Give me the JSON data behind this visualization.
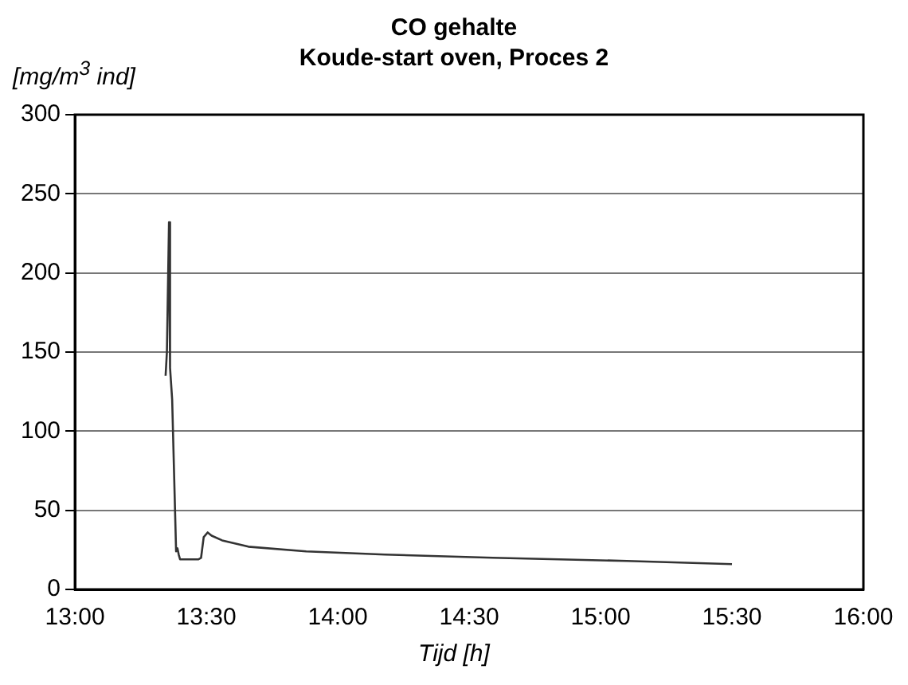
{
  "chart_data": {
    "type": "line",
    "title": "CO gehalte",
    "subtitle": "Koude-start oven, Proces 2",
    "ylabel": "[mg/m$^{3}$ ind]",
    "xlabel": "Tijd [h]",
    "x": [
      13.345,
      13.35,
      13.358,
      13.362,
      13.37,
      13.385,
      13.39,
      13.395,
      13.4,
      13.47,
      13.48,
      13.49,
      13.505,
      13.52,
      13.56,
      13.66,
      13.88,
      14.18,
      14.59,
      15.1,
      15.5
    ],
    "series": [
      {
        "color": "#333333",
        "values": [
          135,
          150,
          232,
          140,
          120,
          24,
          26,
          22,
          19,
          19,
          20,
          33,
          36,
          34,
          31,
          27,
          24,
          22,
          20,
          18,
          16
        ]
      }
    ],
    "xlim": [
      13,
      16
    ],
    "xticks": [
      {
        "value": 13,
        "label": "13:00"
      },
      {
        "value": 13.5,
        "label": "13:30"
      },
      {
        "value": 14,
        "label": "14:00"
      },
      {
        "value": 14.5,
        "label": "14:30"
      },
      {
        "value": 15,
        "label": "15:00"
      },
      {
        "value": 15.5,
        "label": "15:30"
      },
      {
        "value": 16,
        "label": "16:00"
      }
    ],
    "ylim": [
      0,
      300
    ],
    "yticks": [
      0,
      50,
      100,
      150,
      200,
      250,
      300
    ],
    "grid": "y",
    "marker": "none",
    "line_style": "solid",
    "legend": false
  }
}
